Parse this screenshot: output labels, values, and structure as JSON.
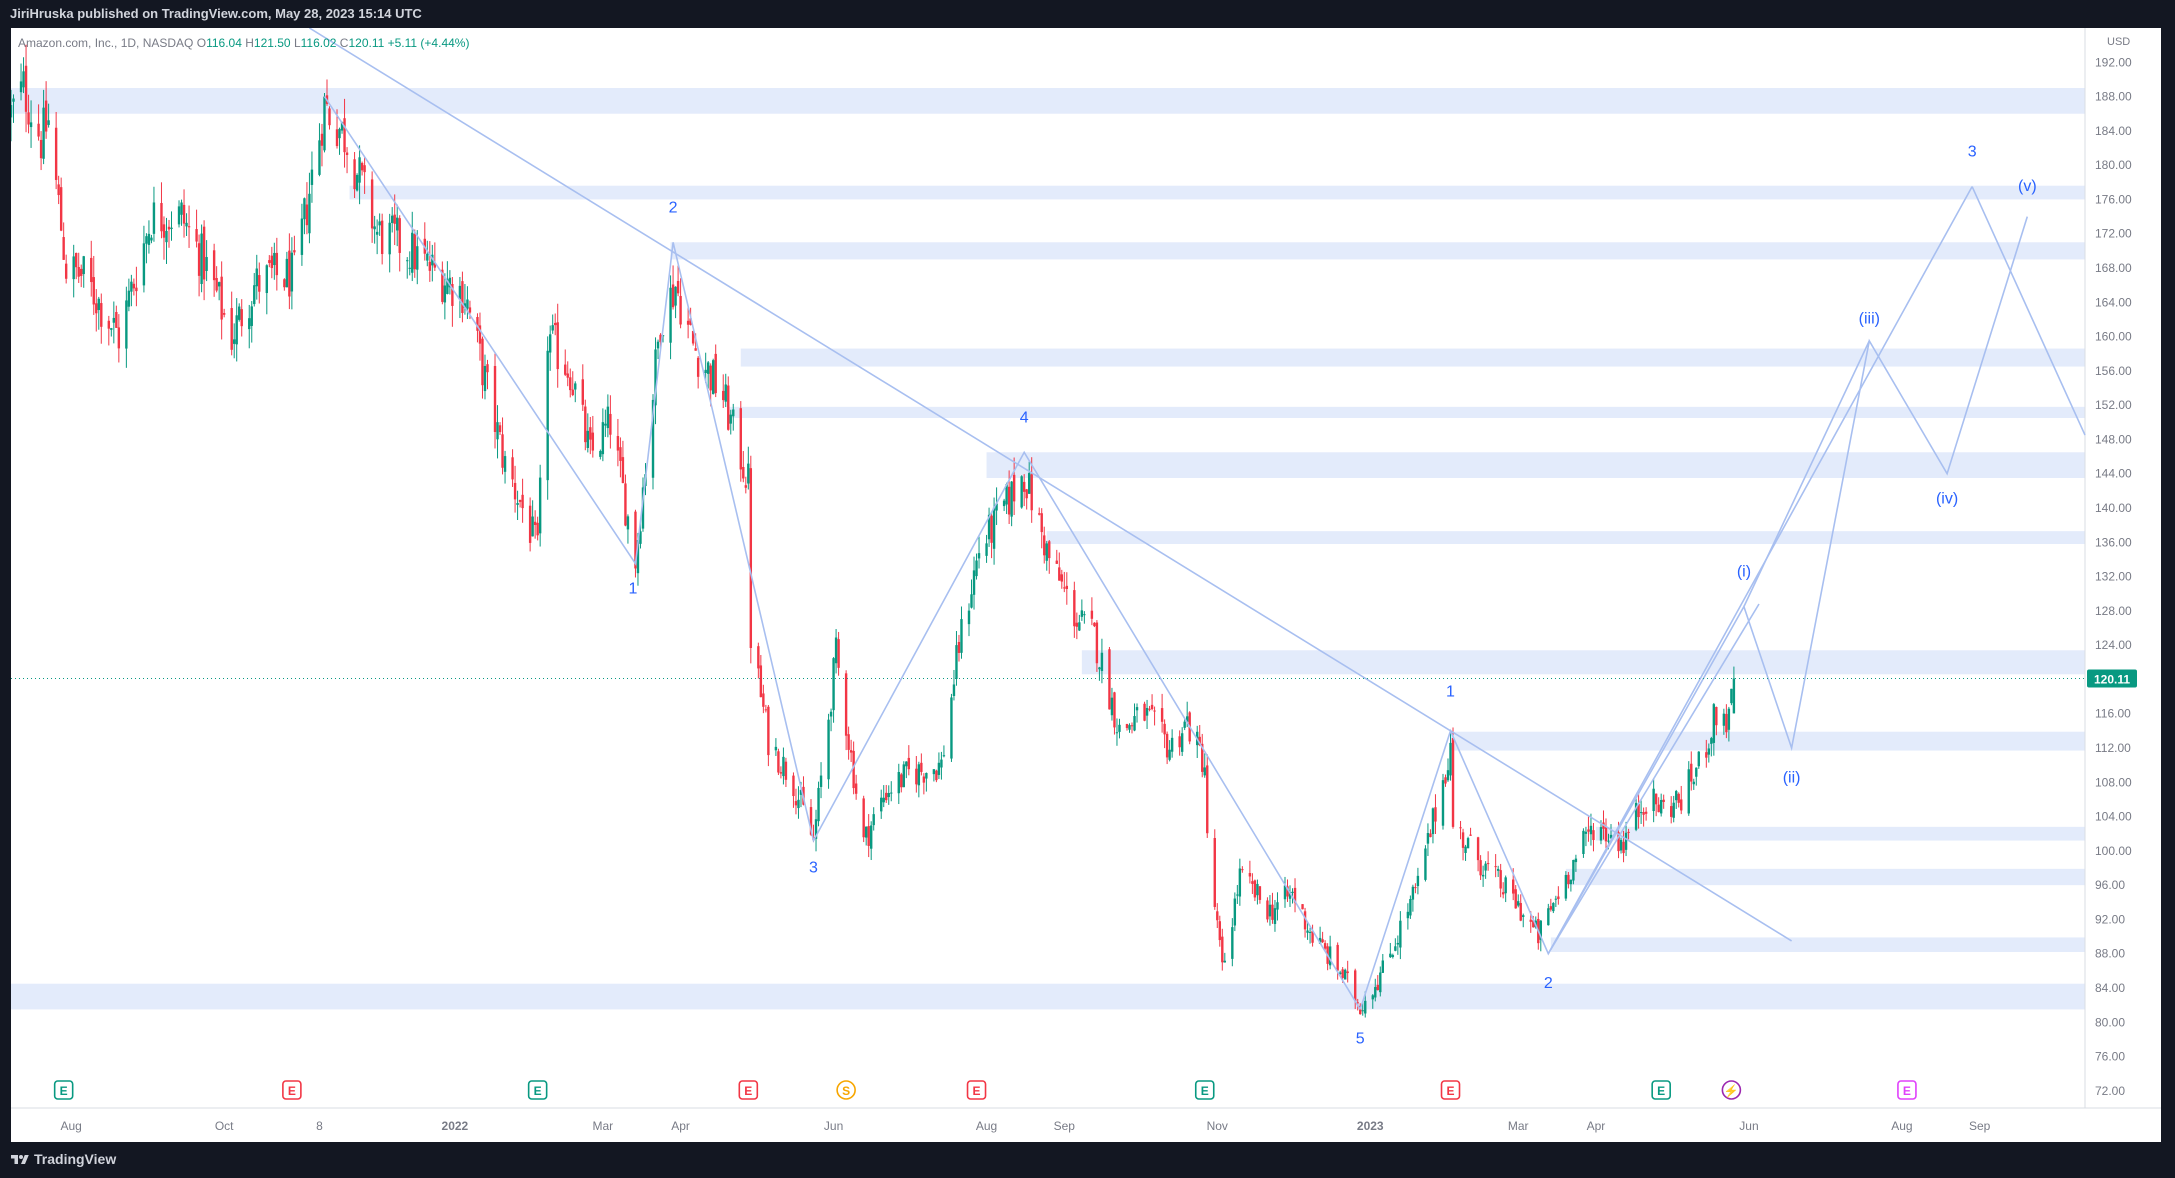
{
  "header": {
    "published_by": "JiriHruska published on TradingView.com, May 28, 2023 15:14 UTC"
  },
  "legend": {
    "symbol": "Amazon.com, Inc., 1D, NASDAQ",
    "open_label": "O",
    "open": "116.04",
    "high_label": "H",
    "high": "121.50",
    "low_label": "L",
    "low": "116.02",
    "close_label": "C",
    "close": "120.11",
    "change": "+5.11 (+4.44%)"
  },
  "footer": {
    "brand": "TradingView"
  },
  "colors": {
    "up": "#089981",
    "down": "#f23645",
    "zone": "#e3ebfb",
    "wave": "#a8bff0",
    "label": "#2962ff",
    "axis_text": "#787b86",
    "earnings": "#089981",
    "earnings_down": "#f23645",
    "split": "#f7a600",
    "dividend": "#9c27b0",
    "future_earnings": "#e040fb"
  },
  "chart_data": {
    "type": "candlestick",
    "symbol": "AMZN",
    "timeframe": "1D",
    "currency": "USD",
    "ylim": [
      70,
      196
    ],
    "y_ticks": [
      72,
      76,
      80,
      84,
      88,
      92,
      96,
      100,
      104,
      108,
      112,
      116,
      120,
      124,
      128,
      132,
      136,
      140,
      144,
      148,
      152,
      156,
      160,
      164,
      168,
      172,
      176,
      180,
      184,
      188,
      192
    ],
    "y_tick_labels": [
      "72.00",
      "76.00",
      "80.00",
      "84.00",
      "88.00",
      "92.00",
      "96.00",
      "100.00",
      "104.00",
      "108.00",
      "112.00",
      "116.00",
      "120.00",
      "124.00",
      "128.00",
      "132.00",
      "136.00",
      "140.00",
      "144.00",
      "148.00",
      "152.00",
      "156.00",
      "160.00",
      "164.00",
      "168.00",
      "172.00",
      "176.00",
      "180.00",
      "184.00",
      "188.00",
      "192.00"
    ],
    "x_start": "2021-07-08",
    "x_end": "2023-10-13",
    "x_ticks": [
      {
        "date": "2021-08-01",
        "label": "Aug"
      },
      {
        "date": "2021-10-01",
        "label": "Oct"
      },
      {
        "date": "2021-11-08",
        "label": "8"
      },
      {
        "date": "2022-01-01",
        "label": "2022"
      },
      {
        "date": "2022-03-01",
        "label": "Mar"
      },
      {
        "date": "2022-04-01",
        "label": "Apr"
      },
      {
        "date": "2022-06-01",
        "label": "Jun"
      },
      {
        "date": "2022-08-01",
        "label": "Aug"
      },
      {
        "date": "2022-09-01",
        "label": "Sep"
      },
      {
        "date": "2022-11-01",
        "label": "Nov"
      },
      {
        "date": "2023-01-01",
        "label": "2023"
      },
      {
        "date": "2023-03-01",
        "label": "Mar"
      },
      {
        "date": "2023-04-01",
        "label": "Apr"
      },
      {
        "date": "2023-06-01",
        "label": "Jun"
      },
      {
        "date": "2023-08-01",
        "label": "Aug"
      },
      {
        "date": "2023-09-01",
        "label": "Sep"
      }
    ],
    "last_price": 120.11,
    "last_price_label": "120.11",
    "price_path": [
      [
        "2021-07-08",
        186
      ],
      [
        "2021-07-13",
        189
      ],
      [
        "2021-07-20",
        183
      ],
      [
        "2021-07-23",
        185
      ],
      [
        "2021-07-30",
        168
      ],
      [
        "2021-08-06",
        167
      ],
      [
        "2021-08-20",
        160
      ],
      [
        "2021-09-02",
        174
      ],
      [
        "2021-09-14",
        174
      ],
      [
        "2021-09-24",
        168
      ],
      [
        "2021-10-04",
        160
      ],
      [
        "2021-10-13",
        166
      ],
      [
        "2021-10-20",
        167
      ],
      [
        "2021-10-29",
        167
      ],
      [
        "2021-11-04",
        177
      ],
      [
        "2021-11-10",
        187
      ],
      [
        "2021-11-19",
        183
      ],
      [
        "2021-12-01",
        172
      ],
      [
        "2021-12-10",
        171
      ],
      [
        "2021-12-22",
        168
      ],
      [
        "2022-01-05",
        165
      ],
      [
        "2022-01-21",
        145
      ],
      [
        "2022-01-28",
        140
      ],
      [
        "2022-02-03",
        135
      ],
      [
        "2022-02-07",
        160
      ],
      [
        "2022-02-16",
        156
      ],
      [
        "2022-02-24",
        146
      ],
      [
        "2022-03-04",
        150
      ],
      [
        "2022-03-14",
        134
      ],
      [
        "2022-03-24",
        162
      ],
      [
        "2022-03-30",
        166
      ],
      [
        "2022-04-06",
        159
      ],
      [
        "2022-04-18",
        153
      ],
      [
        "2022-04-28",
        143
      ],
      [
        "2022-04-29",
        125
      ],
      [
        "2022-05-06",
        113
      ],
      [
        "2022-05-16",
        108
      ],
      [
        "2022-05-24",
        101
      ],
      [
        "2022-06-02",
        123
      ],
      [
        "2022-06-13",
        101
      ],
      [
        "2022-06-22",
        107
      ],
      [
        "2022-07-01",
        109
      ],
      [
        "2022-07-14",
        110
      ],
      [
        "2022-07-21",
        124
      ],
      [
        "2022-07-29",
        135
      ],
      [
        "2022-08-08",
        140
      ],
      [
        "2022-08-16",
        144
      ],
      [
        "2022-08-26",
        134
      ],
      [
        "2022-09-06",
        127
      ],
      [
        "2022-09-13",
        125
      ],
      [
        "2022-09-23",
        114
      ],
      [
        "2022-10-03",
        116
      ],
      [
        "2022-10-13",
        112
      ],
      [
        "2022-10-20",
        115
      ],
      [
        "2022-10-27",
        110
      ],
      [
        "2022-10-28",
        101
      ],
      [
        "2022-11-03",
        86
      ],
      [
        "2022-11-10",
        97
      ],
      [
        "2022-11-22",
        93
      ],
      [
        "2022-12-01",
        95
      ],
      [
        "2022-12-09",
        90
      ],
      [
        "2022-12-20",
        86
      ],
      [
        "2022-12-28",
        82
      ],
      [
        "2023-01-06",
        86
      ],
      [
        "2023-01-20",
        96
      ],
      [
        "2023-02-02",
        112
      ],
      [
        "2023-02-03",
        103
      ],
      [
        "2023-02-16",
        98
      ],
      [
        "2023-02-28",
        94
      ],
      [
        "2023-03-09",
        90
      ],
      [
        "2023-03-20",
        97
      ],
      [
        "2023-03-31",
        103
      ],
      [
        "2023-04-12",
        101
      ],
      [
        "2023-04-20",
        106
      ],
      [
        "2023-04-28",
        105
      ],
      [
        "2023-05-05",
        106
      ],
      [
        "2023-05-12",
        110
      ],
      [
        "2023-05-19",
        116
      ],
      [
        "2023-05-24",
        115
      ],
      [
        "2023-05-26",
        120.11
      ]
    ],
    "zones": [
      {
        "from": "2021-07-08",
        "to": "2023-10-13",
        "low": 186,
        "high": 189
      },
      {
        "from": "2021-11-20",
        "to": "2023-10-13",
        "low": 176,
        "high": 177.6
      },
      {
        "from": "2022-03-28",
        "to": "2023-10-13",
        "low": 169,
        "high": 171
      },
      {
        "from": "2022-04-25",
        "to": "2023-10-13",
        "low": 156.5,
        "high": 158.6
      },
      {
        "from": "2022-04-20",
        "to": "2023-10-13",
        "low": 150.5,
        "high": 151.8
      },
      {
        "from": "2022-08-01",
        "to": "2023-10-13",
        "low": 143.5,
        "high": 146.5
      },
      {
        "from": "2022-08-25",
        "to": "2023-10-13",
        "low": 135.8,
        "high": 137.3
      },
      {
        "from": "2022-09-08",
        "to": "2023-10-13",
        "low": 120.6,
        "high": 123.4
      },
      {
        "from": "2023-02-02",
        "to": "2023-10-13",
        "low": 111.7,
        "high": 113.9
      },
      {
        "from": "2023-04-01",
        "to": "2023-10-13",
        "low": 101.2,
        "high": 102.8
      },
      {
        "from": "2023-03-20",
        "to": "2023-10-13",
        "low": 96,
        "high": 97.9
      },
      {
        "from": "2023-03-14",
        "to": "2023-10-13",
        "low": 88.2,
        "high": 89.9
      },
      {
        "from": "2021-07-08",
        "to": "2023-10-13",
        "low": 81.5,
        "high": 84.5
      }
    ],
    "trendline": [
      [
        "2021-11-04",
        196
      ],
      [
        "2023-06-18",
        89.5
      ]
    ],
    "wave_main": [
      [
        "2021-11-10",
        188
      ],
      [
        "2022-03-14",
        133.5
      ],
      [
        "2022-03-29",
        171
      ],
      [
        "2022-05-24",
        101.2
      ],
      [
        "2022-08-16",
        146.5
      ],
      [
        "2022-12-28",
        81.5
      ]
    ],
    "wave_new": [
      [
        "2022-12-28",
        81.5
      ],
      [
        "2023-02-02",
        114
      ],
      [
        "2023-03-13",
        88
      ],
      [
        "2023-08-29",
        177.5
      ]
    ],
    "wave_minor": [
      [
        "2023-03-13",
        88
      ],
      [
        "2023-05-30",
        128.5
      ],
      [
        "2023-06-18",
        112
      ],
      [
        "2023-07-19",
        159.5
      ],
      [
        "2023-08-19",
        144
      ],
      [
        "2023-09-20",
        174
      ]
    ],
    "wave_projection_extra": [
      [
        "2023-05-30",
        128.5
      ],
      [
        "2023-07-19",
        159.5
      ]
    ],
    "wave_down": [
      [
        "2023-08-29",
        177.5
      ],
      [
        "2023-10-13",
        148.5
      ]
    ],
    "wave_labels": [
      {
        "date": "2022-03-13",
        "price": 130.0,
        "text": "1"
      },
      {
        "date": "2022-03-29",
        "price": 174.5,
        "text": "2"
      },
      {
        "date": "2022-05-24",
        "price": 97.5,
        "text": "3"
      },
      {
        "date": "2022-08-16",
        "price": 150.0,
        "text": "4"
      },
      {
        "date": "2022-12-28",
        "price": 77.5,
        "text": "5"
      },
      {
        "date": "2023-02-02",
        "price": 118.0,
        "text": "1"
      },
      {
        "date": "2023-03-13",
        "price": 84.0,
        "text": "2"
      },
      {
        "date": "2023-08-29",
        "price": 181.0,
        "text": "3"
      },
      {
        "date": "2023-05-30",
        "price": 132.0,
        "text": "(i)"
      },
      {
        "date": "2023-06-18",
        "price": 108.0,
        "text": "(ii)"
      },
      {
        "date": "2023-07-19",
        "price": 161.5,
        "text": "(iii)"
      },
      {
        "date": "2023-08-19",
        "price": 140.5,
        "text": "(iv)"
      },
      {
        "date": "2023-09-20",
        "price": 177.0,
        "text": "(v)"
      }
    ],
    "events": [
      {
        "date": "2021-07-29",
        "kind": "earnings",
        "text": "E"
      },
      {
        "date": "2021-10-28",
        "kind": "earnings_down",
        "text": "E"
      },
      {
        "date": "2022-02-03",
        "kind": "earnings",
        "text": "E"
      },
      {
        "date": "2022-04-28",
        "kind": "earnings_down",
        "text": "E"
      },
      {
        "date": "2022-06-06",
        "kind": "split",
        "text": "S"
      },
      {
        "date": "2022-07-28",
        "kind": "earnings_down",
        "text": "E"
      },
      {
        "date": "2022-10-27",
        "kind": "earnings",
        "text": "E"
      },
      {
        "date": "2023-02-02",
        "kind": "earnings_down",
        "text": "E"
      },
      {
        "date": "2023-04-27",
        "kind": "earnings",
        "text": "E"
      },
      {
        "date": "2023-05-25",
        "kind": "dividend",
        "text": "⚡"
      },
      {
        "date": "2023-08-03",
        "kind": "future_earnings",
        "text": "E"
      }
    ]
  }
}
